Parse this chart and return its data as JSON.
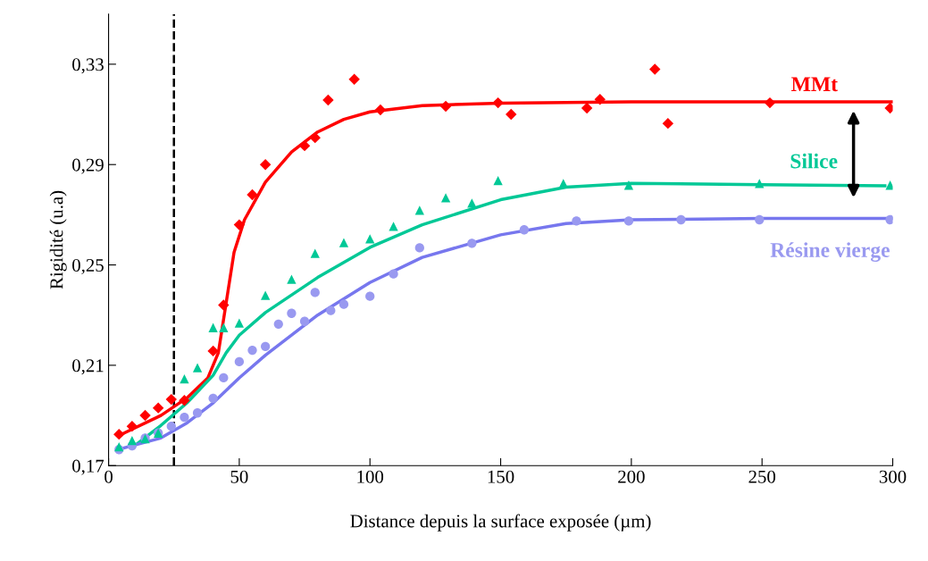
{
  "chart_data": {
    "type": "scatter",
    "xlabel": "Distance depuis la surface exposée (µm)",
    "ylabel": "Rigidité (u.a)",
    "xlim": [
      0,
      300
    ],
    "xticks": [
      0,
      50,
      100,
      150,
      200,
      250,
      300
    ],
    "ylim": [
      0.17,
      0.35
    ],
    "yticks": [
      {
        "value": 0.17,
        "label": "0,17"
      },
      {
        "value": 0.21,
        "label": "0,21"
      },
      {
        "value": 0.25,
        "label": "0,25"
      },
      {
        "value": 0.29,
        "label": "0,29"
      },
      {
        "value": 0.33,
        "label": "0,33"
      }
    ],
    "grid": false,
    "legend": false,
    "ref_lines": [
      {
        "axis": "x",
        "value": 25,
        "color": "#000000",
        "line_style": "dashed"
      }
    ],
    "series": [
      {
        "name": "MMt",
        "marker": "diamond",
        "color": "#ff0000",
        "x": [
          4,
          9,
          14,
          19,
          24,
          29,
          40,
          44,
          50,
          55,
          60,
          75,
          79,
          84,
          94,
          104,
          129,
          149,
          154,
          183,
          188,
          209,
          214,
          253,
          299
        ],
        "values": [
          0.1825,
          0.1857,
          0.19,
          0.193,
          0.1964,
          0.196,
          0.2157,
          0.234,
          0.266,
          0.278,
          0.29,
          0.2975,
          0.3007,
          0.3157,
          0.324,
          0.3118,
          0.3132,
          0.3146,
          0.31,
          0.3125,
          0.316,
          0.328,
          0.3064,
          0.3146,
          0.3125
        ]
      },
      {
        "name": "Silice",
        "marker": "triangle",
        "color": "#00c896",
        "x": [
          4,
          9,
          14,
          19,
          29,
          34,
          40,
          44,
          50,
          60,
          70,
          79,
          90,
          100,
          109,
          119,
          129,
          139,
          149,
          174,
          199,
          249,
          299
        ],
        "values": [
          0.1775,
          0.18,
          0.1807,
          0.183,
          0.2046,
          0.209,
          0.225,
          0.225,
          0.2268,
          0.2379,
          0.2443,
          0.2546,
          0.2589,
          0.2604,
          0.2654,
          0.2718,
          0.2768,
          0.2746,
          0.2836,
          0.2825,
          0.2818,
          0.2825,
          0.2818
        ]
      },
      {
        "name": "Résine vierge",
        "marker": "circle",
        "color": "#9999f0",
        "x": [
          4,
          9,
          14,
          19,
          24,
          29,
          34,
          40,
          44,
          50,
          55,
          60,
          65,
          70,
          75,
          79,
          85,
          90,
          100,
          109,
          119,
          139,
          159,
          179,
          199,
          219,
          249,
          299
        ],
        "values": [
          0.1764,
          0.1779,
          0.181,
          0.183,
          0.1857,
          0.1893,
          0.191,
          0.1968,
          0.205,
          0.2114,
          0.216,
          0.2175,
          0.2264,
          0.2307,
          0.2275,
          0.239,
          0.2318,
          0.2343,
          0.2375,
          0.2464,
          0.2568,
          0.2586,
          0.264,
          0.2675,
          0.2675,
          0.268,
          0.268,
          0.268
        ]
      },
      {
        "type": "line",
        "marker": "none",
        "color": "#ff0000",
        "x": [
          4,
          20,
          30,
          38,
          42,
          45,
          48,
          52,
          60,
          70,
          80,
          90,
          100,
          120,
          150,
          200,
          300
        ],
        "values": [
          0.182,
          0.19,
          0.197,
          0.205,
          0.215,
          0.235,
          0.255,
          0.268,
          0.283,
          0.295,
          0.303,
          0.308,
          0.311,
          0.3135,
          0.3145,
          0.315,
          0.315
        ]
      },
      {
        "type": "line",
        "marker": "none",
        "color": "#00c896",
        "x": [
          10,
          20,
          30,
          40,
          45,
          50,
          60,
          80,
          100,
          120,
          150,
          175,
          200,
          250,
          297
        ],
        "values": [
          0.178,
          0.186,
          0.195,
          0.206,
          0.215,
          0.222,
          0.231,
          0.245,
          0.257,
          0.266,
          0.276,
          0.281,
          0.2825,
          0.282,
          0.2815
        ]
      },
      {
        "type": "line",
        "marker": "none",
        "color": "#7777ee",
        "x": [
          4,
          20,
          30,
          40,
          50,
          60,
          80,
          100,
          120,
          150,
          175,
          200,
          250,
          300
        ],
        "values": [
          0.1765,
          0.181,
          0.187,
          0.195,
          0.205,
          0.214,
          0.23,
          0.243,
          0.253,
          0.262,
          0.2665,
          0.268,
          0.2685,
          0.2685
        ]
      }
    ]
  }
}
